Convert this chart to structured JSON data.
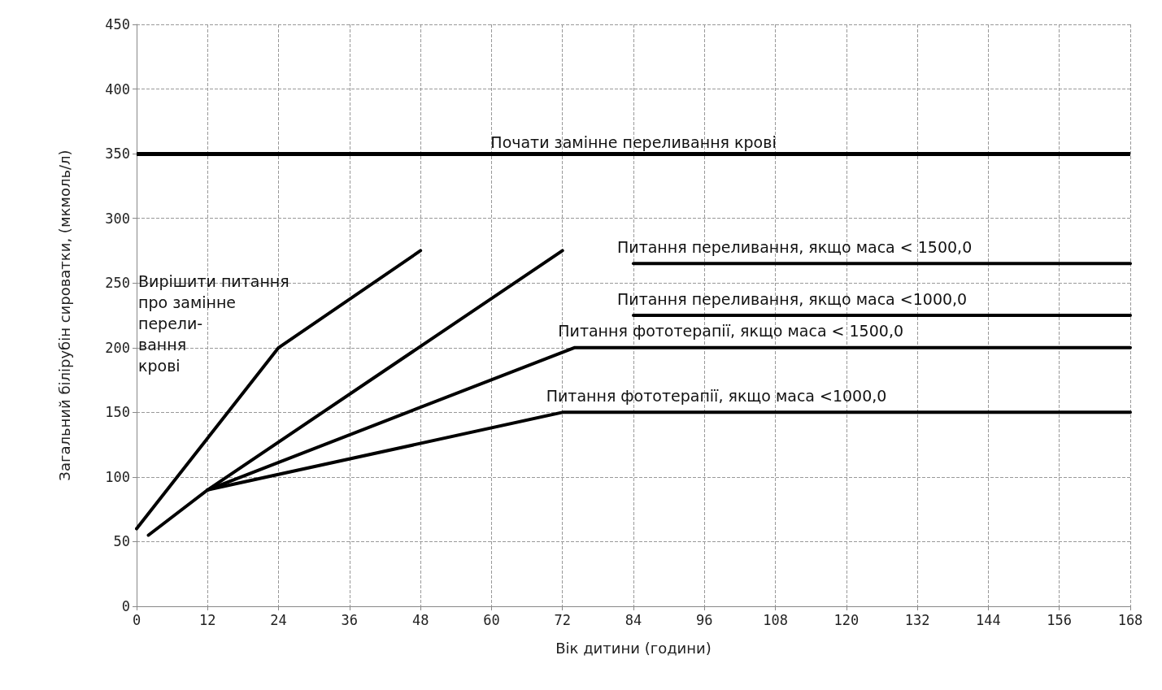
{
  "chart_data": {
    "type": "line",
    "xlabel": "Вік дитини (години)",
    "ylabel": "Загальний білірубін сироватки, (мкмоль/л)",
    "xlim": [
      0,
      168
    ],
    "xticks": [
      0,
      12,
      24,
      36,
      48,
      60,
      72,
      84,
      96,
      108,
      120,
      132,
      144,
      156,
      168
    ],
    "ylim": [
      0,
      450
    ],
    "yticks": [
      0,
      50,
      100,
      150,
      200,
      250,
      300,
      350,
      400,
      450
    ],
    "grid": true,
    "legend": false,
    "marker": "none",
    "line_style": "solid",
    "series": [
      {
        "color": "#000000",
        "x": [
          0,
          24,
          48
        ],
        "values": [
          60,
          200,
          275
        ]
      },
      {
        "color": "#000000",
        "x": [
          2,
          12,
          72
        ],
        "values": [
          55,
          90,
          275
        ]
      },
      {
        "name": "Питання фототерапії, якщо маса < 1500,0",
        "color": "#000000",
        "x": [
          12,
          74,
          168
        ],
        "values": [
          90,
          200,
          200
        ]
      },
      {
        "name": "Питання фототерапії, якщо маса <1000,0",
        "color": "#000000",
        "x": [
          12,
          72,
          168
        ],
        "values": [
          90,
          150,
          150
        ]
      },
      {
        "name": "Питання переливання, якщо маса < 1500,0",
        "color": "#000000",
        "x": [
          84,
          168
        ],
        "values": [
          265,
          265
        ]
      },
      {
        "name": "Питання переливання, якщо маса <1000,0",
        "color": "#000000",
        "x": [
          84,
          168
        ],
        "values": [
          225,
          225
        ]
      }
    ],
    "ref_lines": [
      {
        "axis": "y",
        "value": 350,
        "label": "Почати замінне переливання крові",
        "color": "#000000"
      }
    ],
    "annotations": [
      "Вирішити питання\nпро замінне\nперели-\nвання\nкрові"
    ]
  }
}
